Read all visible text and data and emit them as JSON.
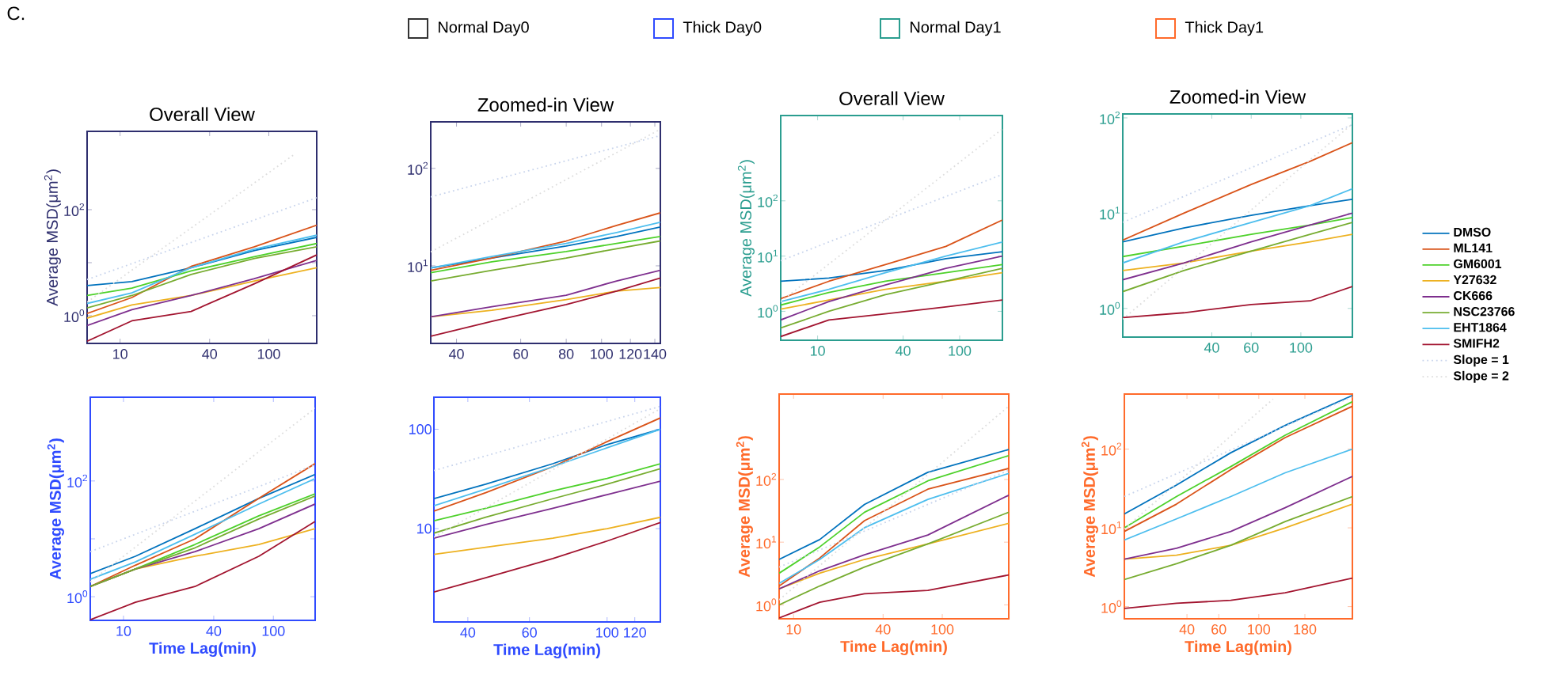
{
  "chart_data": [
    {
      "type": "line",
      "log": "xy",
      "title": "Overall View",
      "ylabel": "Average MSD(μm$^{2}$)",
      "annotations": [
        "C.",
        "Normal Day0",
        "Thick Day0",
        "Normal Day1",
        "Thick Day1"
      ],
      "xlim": [
        6,
        210
      ],
      "ylim": [
        0.3,
        3000
      ],
      "xticks": [
        10,
        40,
        100
      ],
      "yticks": [
        {
          "value": 1,
          "label": "10$^{0}$"
        },
        {
          "value": 10,
          "label": null
        },
        {
          "value": 100,
          "label": "10$^{2}$"
        }
      ],
      "x": [
        6,
        12,
        30,
        80,
        210
      ],
      "series": [
        {
          "color": "#0072bd",
          "values": [
            3.7,
            4.4,
            8,
            17,
            30
          ]
        },
        {
          "color": "#d95319",
          "values": [
            1.1,
            2.2,
            8.5,
            20,
            51
          ]
        },
        {
          "color": "#4dd12a",
          "values": [
            2.4,
            3.3,
            7,
            13,
            23
          ]
        },
        {
          "color": "#edb120",
          "values": [
            0.9,
            1.6,
            2.4,
            4.5,
            8
          ]
        },
        {
          "color": "#7e2f8e",
          "values": [
            0.65,
            1.3,
            2.4,
            5,
            11
          ]
        },
        {
          "color": "#77ac30",
          "values": [
            1.4,
            2.4,
            6,
            12,
            20
          ]
        },
        {
          "color": "#4dbeee",
          "values": [
            1.7,
            2.7,
            8,
            18,
            33
          ]
        },
        {
          "color": "#a2142f",
          "values": [
            0.33,
            0.8,
            1.2,
            4,
            14
          ]
        },
        {
          "color": "#c8d4ec",
          "line_style": "dotted",
          "x": [
            6,
            210
          ],
          "values": [
            4.8,
            168
          ]
        },
        {
          "color": "#dddddd",
          "line_style": "dotted",
          "x": [
            6,
            150
          ],
          "values": [
            1.8,
            1125
          ]
        }
      ]
    },
    {
      "type": "line",
      "log": "xy",
      "title": "Zoomed-in View",
      "xlim": [
        34,
        145
      ],
      "ylim": [
        1.6,
        300
      ],
      "xticks": [
        40,
        60,
        80,
        100,
        120,
        140
      ],
      "yticks": [
        {
          "value": 10,
          "label": "10$^{1}$"
        },
        {
          "value": 100,
          "label": "10$^{2}$"
        }
      ],
      "x": [
        34,
        50,
        80,
        110,
        145
      ],
      "series": [
        {
          "color": "#0072bd",
          "values": [
            9.5,
            12,
            16,
            20,
            25
          ]
        },
        {
          "color": "#d95319",
          "values": [
            9,
            12,
            18,
            26,
            35
          ]
        },
        {
          "color": "#4dd12a",
          "values": [
            8.5,
            11,
            14,
            17,
            20
          ]
        },
        {
          "color": "#edb120",
          "values": [
            3,
            3.5,
            4.5,
            5.5,
            6
          ]
        },
        {
          "color": "#7e2f8e",
          "values": [
            3,
            3.8,
            5,
            7,
            9
          ]
        },
        {
          "color": "#77ac30",
          "values": [
            7,
            9,
            12,
            15,
            18
          ]
        },
        {
          "color": "#4dbeee",
          "values": [
            9.5,
            12.5,
            17,
            22,
            28
          ]
        },
        {
          "color": "#a2142f",
          "values": [
            1.9,
            2.7,
            4,
            5.5,
            7.5
          ]
        },
        {
          "color": "#c8d4ec",
          "line_style": "dotted",
          "x": [
            34,
            145
          ],
          "values": [
            51,
            217
          ]
        },
        {
          "color": "#dddddd",
          "line_style": "dotted",
          "x": [
            34,
            145
          ],
          "values": [
            13.9,
            252
          ]
        }
      ]
    },
    {
      "type": "line",
      "log": "xy",
      "title": "Overall View",
      "ylabel": "Average MSD(μm$^{2}$)",
      "xlim": [
        5.5,
        200
      ],
      "ylim": [
        0.3,
        3500
      ],
      "xticks": [
        10,
        40,
        100
      ],
      "yticks": [
        {
          "value": 1,
          "label": "10$^{0}$"
        },
        {
          "value": 10,
          "label": "10$^{1}$"
        },
        {
          "value": 100,
          "label": "10$^{2}$"
        }
      ],
      "x": [
        5.5,
        12,
        30,
        80,
        200
      ],
      "series": [
        {
          "color": "#0072bd",
          "values": [
            3.5,
            4,
            5.5,
            9,
            12
          ]
        },
        {
          "color": "#d95319",
          "values": [
            1.7,
            3.5,
            7,
            15,
            45
          ]
        },
        {
          "color": "#4dd12a",
          "values": [
            1.3,
            2.2,
            3.5,
            5,
            7
          ]
        },
        {
          "color": "#edb120",
          "values": [
            1.1,
            1.6,
            2.5,
            3.5,
            5
          ]
        },
        {
          "color": "#7e2f8e",
          "values": [
            0.7,
            1.5,
            3,
            6,
            10
          ]
        },
        {
          "color": "#77ac30",
          "values": [
            0.5,
            1,
            2,
            3.5,
            6
          ]
        },
        {
          "color": "#4dbeee",
          "values": [
            1.5,
            2.5,
            5,
            10,
            18
          ]
        },
        {
          "color": "#a2142f",
          "values": [
            0.35,
            0.7,
            0.9,
            1.2,
            1.6
          ]
        },
        {
          "color": "#c8d4ec",
          "line_style": "dotted",
          "x": [
            5.5,
            200
          ],
          "values": [
            8.25,
            300
          ]
        },
        {
          "color": "#dddddd",
          "line_style": "dotted",
          "x": [
            5.5,
            200
          ],
          "values": [
            1.5,
            2000
          ]
        }
      ]
    },
    {
      "type": "line",
      "log": "xy",
      "title": "Zoomed-in View",
      "legend": "right",
      "xlim": [
        16,
        170
      ],
      "ylim": [
        0.5,
        110
      ],
      "xticks": [
        40,
        60,
        100
      ],
      "yticks": [
        {
          "value": 1,
          "label": "10$^{0}$"
        },
        {
          "value": 10,
          "label": "10$^{1}$"
        },
        {
          "value": 100,
          "label": "10$^{2}$"
        }
      ],
      "x": [
        16,
        30,
        60,
        110,
        170
      ],
      "series": [
        {
          "name": "DMSO",
          "color": "#0072bd",
          "values": [
            5,
            7,
            9.5,
            12,
            14
          ]
        },
        {
          "name": "ML141",
          "color": "#d95319",
          "values": [
            5.2,
            10,
            20,
            35,
            55
          ]
        },
        {
          "name": "GM6001",
          "color": "#4dd12a",
          "values": [
            3.5,
            4.5,
            6,
            7.5,
            9
          ]
        },
        {
          "name": "Y27632",
          "color": "#edb120",
          "values": [
            2.5,
            3,
            4,
            5,
            6
          ]
        },
        {
          "name": "CK666",
          "color": "#7e2f8e",
          "values": [
            2,
            3,
            5,
            7.5,
            10
          ]
        },
        {
          "name": "NSC23766",
          "color": "#77ac30",
          "values": [
            1.5,
            2.5,
            4,
            6,
            8
          ]
        },
        {
          "name": "EHT1864",
          "color": "#4dbeee",
          "values": [
            3,
            5,
            8,
            12,
            18
          ]
        },
        {
          "name": "SMIFH2",
          "color": "#a2142f",
          "values": [
            0.8,
            0.9,
            1.1,
            1.2,
            1.7
          ]
        },
        {
          "name": "Slope = 1",
          "color": "#c8d4ec",
          "line_style": "dotted",
          "x": [
            16,
            170
          ],
          "values": [
            8,
            85
          ]
        },
        {
          "name": "Slope = 2",
          "color": "#dddddd",
          "line_style": "dotted",
          "x": [
            16,
            170
          ],
          "values": [
            0.77,
            86.7
          ]
        }
      ]
    },
    {
      "type": "line",
      "log": "xy",
      "xlabel": "Time Lag(min)",
      "ylabel": "Average MSD(μm$^{2}$)",
      "xlim": [
        6,
        190
      ],
      "ylim": [
        0.39,
        2800
      ],
      "xticks": [
        10,
        40,
        100
      ],
      "yticks": [
        {
          "value": 1,
          "label": "10$^{0}$"
        },
        {
          "value": 10,
          "label": null
        },
        {
          "value": 100,
          "label": "10$^{2}$"
        }
      ],
      "x": [
        6,
        12,
        30,
        80,
        190
      ],
      "series": [
        {
          "color": "#0072bd",
          "values": [
            2.5,
            5,
            15,
            50,
            130
          ]
        },
        {
          "color": "#d95319",
          "values": [
            1.5,
            3.5,
            10,
            50,
            200
          ]
        },
        {
          "color": "#4dd12a",
          "values": [
            1.5,
            3,
            8,
            25,
            60
          ]
        },
        {
          "color": "#edb120",
          "values": [
            1.5,
            3,
            5,
            8,
            15
          ]
        },
        {
          "color": "#7e2f8e",
          "values": [
            1.5,
            3,
            6,
            15,
            40
          ]
        },
        {
          "color": "#77ac30",
          "values": [
            1.5,
            3,
            7,
            22,
            55
          ]
        },
        {
          "color": "#4dbeee",
          "values": [
            2,
            4,
            12,
            40,
            110
          ]
        },
        {
          "color": "#a2142f",
          "values": [
            0.4,
            0.8,
            1.5,
            5,
            20
          ]
        },
        {
          "color": "#c8d4ec",
          "line_style": "dotted",
          "x": [
            6,
            190
          ],
          "values": [
            6,
            190
          ]
        },
        {
          "color": "#dddddd",
          "line_style": "dotted",
          "x": [
            6,
            190
          ],
          "values": [
            1.8,
            1805
          ]
        }
      ]
    },
    {
      "type": "line",
      "log": "xy",
      "xlabel": "Time Lag(min)",
      "xlim": [
        32,
        142
      ],
      "ylim": [
        1.15,
        210
      ],
      "xticks": [
        40,
        60,
        100,
        120
      ],
      "yticks": [
        10,
        100
      ],
      "x": [
        32,
        45,
        70,
        100,
        142
      ],
      "series": [
        {
          "color": "#0072bd",
          "values": [
            20,
            28,
            45,
            70,
            100
          ]
        },
        {
          "color": "#d95319",
          "values": [
            15,
            23,
            42,
            75,
            130
          ]
        },
        {
          "color": "#4dd12a",
          "values": [
            12,
            16,
            24,
            32,
            45
          ]
        },
        {
          "color": "#edb120",
          "values": [
            5.5,
            6.5,
            8,
            10,
            13
          ]
        },
        {
          "color": "#7e2f8e",
          "values": [
            8,
            11,
            16,
            22,
            30
          ]
        },
        {
          "color": "#77ac30",
          "values": [
            9,
            13,
            20,
            28,
            40
          ]
        },
        {
          "color": "#4dbeee",
          "values": [
            17,
            25,
            42,
            65,
            100
          ]
        },
        {
          "color": "#a2142f",
          "values": [
            2.3,
            3.2,
            5,
            7.5,
            11.5
          ]
        },
        {
          "color": "#c8d4ec",
          "line_style": "dotted",
          "x": [
            32,
            142
          ],
          "values": [
            38.4,
            170
          ]
        },
        {
          "color": "#dddddd",
          "line_style": "dotted",
          "x": [
            32,
            142
          ],
          "values": [
            8.2,
            161
          ]
        }
      ]
    },
    {
      "type": "line",
      "log": "xy",
      "xlabel": "Time Lag(min)",
      "ylabel": "Average MSD(μm$^{2}$)",
      "xlim": [
        8,
        280
      ],
      "ylim": [
        0.6,
        2300
      ],
      "xticks": [
        10,
        40,
        100
      ],
      "yticks": [
        {
          "value": 1,
          "label": "10$^{0}$"
        },
        {
          "value": 10,
          "label": "10$^{1}$"
        },
        {
          "value": 100,
          "label": "10$^{2}$"
        }
      ],
      "x": [
        8,
        15,
        30,
        80,
        280
      ],
      "series": [
        {
          "color": "#0072bd",
          "values": [
            5.3,
            11,
            40,
            130,
            300
          ]
        },
        {
          "color": "#d95319",
          "values": [
            2,
            5.6,
            22,
            70,
            150
          ]
        },
        {
          "color": "#4dd12a",
          "values": [
            3.2,
            8.4,
            30,
            95,
            240
          ]
        },
        {
          "color": "#edb120",
          "values": [
            1.8,
            3.2,
            5.3,
            9.4,
            20
          ]
        },
        {
          "color": "#7e2f8e",
          "values": [
            1.8,
            3.5,
            6.3,
            13,
            56
          ]
        },
        {
          "color": "#77ac30",
          "values": [
            1,
            2,
            4,
            9.4,
            30
          ]
        },
        {
          "color": "#4dbeee",
          "values": [
            2.2,
            5.3,
            17,
            48,
            125
          ]
        },
        {
          "color": "#a2142f",
          "values": [
            0.62,
            1.1,
            1.5,
            1.7,
            3
          ]
        },
        {
          "color": "#c8d4ec",
          "line_style": "dotted",
          "x": [
            8,
            280
          ],
          "values": [
            4,
            140
          ]
        },
        {
          "color": "#dddddd",
          "line_style": "dotted",
          "x": [
            8,
            280
          ],
          "values": [
            1.2,
            1470
          ]
        }
      ]
    },
    {
      "type": "line",
      "log": "xy",
      "xlabel": "Time Lag(min)",
      "ylabel": "Average MSD(μm$^{2}$)",
      "xlim": [
        18,
        330
      ],
      "ylim": [
        0.7,
        500
      ],
      "xticks": [
        40,
        60,
        100,
        180
      ],
      "yticks": [
        {
          "value": 1,
          "label": "10$^{0}$"
        },
        {
          "value": 10,
          "label": "10$^{1}$"
        },
        {
          "value": 100,
          "label": "10$^{2}$"
        }
      ],
      "x": [
        18,
        35,
        70,
        140,
        330
      ],
      "series": [
        {
          "color": "#0072bd",
          "values": [
            15,
            35,
            90,
            200,
            480
          ]
        },
        {
          "color": "#d95319",
          "values": [
            9,
            20,
            55,
            140,
            350
          ]
        },
        {
          "color": "#4dd12a",
          "values": [
            10,
            25,
            60,
            150,
            400
          ]
        },
        {
          "color": "#edb120",
          "values": [
            4,
            4.5,
            6,
            10,
            20
          ]
        },
        {
          "color": "#7e2f8e",
          "values": [
            4,
            5.5,
            9,
            18,
            45
          ]
        },
        {
          "color": "#77ac30",
          "values": [
            2.2,
            3.5,
            6,
            12,
            25
          ]
        },
        {
          "color": "#4dbeee",
          "values": [
            7,
            13,
            25,
            50,
            100
          ]
        },
        {
          "color": "#a2142f",
          "values": [
            0.95,
            1.1,
            1.2,
            1.5,
            2.3
          ]
        },
        {
          "color": "#c8d4ec",
          "line_style": "dotted",
          "x": [
            18,
            330
          ],
          "values": [
            25,
            462
          ]
        },
        {
          "color": "#dddddd",
          "line_style": "dotted",
          "x": [
            18,
            120
          ],
          "values": [
            9.7,
            432
          ]
        }
      ]
    }
  ]
}
